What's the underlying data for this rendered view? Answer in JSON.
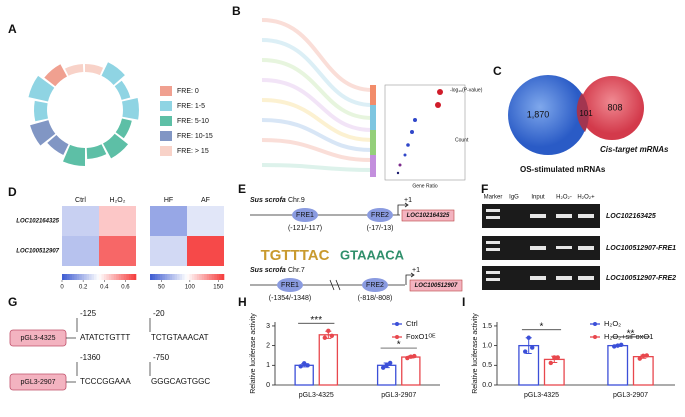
{
  "labels": [
    "A",
    "B",
    "C",
    "D",
    "E",
    "F",
    "G",
    "H",
    "I"
  ],
  "panel_a": {
    "legend": [
      "FRE: 0",
      "FRE: 1-5",
      "FRE: 5-10",
      "FRE: 10-15",
      "FRE: > 15"
    ],
    "colors": [
      "#f0a090",
      "#8fd4e3",
      "#5dbfa6",
      "#8196c4",
      "#f8d2c8"
    ]
  },
  "panel_b": {
    "x_label": "Gene Ratio",
    "color_label": "-log₁₀(P-value)",
    "size_label": "Count"
  },
  "panel_c": {
    "left": "1,870",
    "overlap": "101",
    "right": "808",
    "left_label": "OS-stimulated mRNAs",
    "right_label": "Cis-target mRNAs"
  },
  "panel_e": {
    "top": {
      "species": "Sus scrofa",
      "chr": "Chr.9",
      "fre1": "FRE1",
      "pos1": "(-121/-117)",
      "fre2": "FRE2",
      "pos2": "(-17/-13)",
      "tss": "+1",
      "gene": "LOC102164325"
    },
    "bottom": {
      "species": "Sus scrofa",
      "chr": "Chr.7",
      "fre1": "FRE1",
      "pos1": "(-1354/-1348)",
      "fre2": "FRE2",
      "pos2": "(-818/-808)",
      "tss": "+1",
      "gene": "LOC100512907"
    },
    "motif1": "TGTTTAC",
    "motif2": "GTAAACA"
  },
  "panel_f": {
    "lanes": [
      "Marker",
      "IgG",
      "Input",
      "H₂O₂-",
      "H₂O₂+"
    ],
    "rows": [
      "LOC102163425",
      "LOC100512907-FRE1",
      "LOC100512907-FRE2"
    ]
  },
  "panel_g": {
    "constructs": [
      {
        "name": "pGL3-4325",
        "start": "-125",
        "end": "-20",
        "seq1": "ATATCTGTTT",
        "seq2": "TCTGTAAACAT"
      },
      {
        "name": "pGL3-2907",
        "start": "-1360",
        "end": "-750",
        "seq1": "TCCCGGAAA",
        "seq2": "GGGCAGTGGC"
      }
    ]
  },
  "chart_data": [
    {
      "type": "heatmap",
      "x": [
        "Ctrl",
        "H₂O₂"
      ],
      "rows": [
        "LOC102164325",
        "LOC100512907"
      ],
      "values": [
        [
          0.25,
          0.45
        ],
        [
          0.22,
          0.62
        ]
      ],
      "clim": [
        0,
        0.7
      ],
      "cticks": [
        0,
        0.2,
        0.4,
        0.6
      ],
      "colors": [
        "#3d5bd1",
        "#ffffff",
        "#f53a3a"
      ]
    },
    {
      "type": "heatmap",
      "x": [
        "HF",
        "AF"
      ],
      "values": [
        [
          60,
          85
        ],
        [
          80,
          155
        ]
      ],
      "clim": [
        30,
        160
      ],
      "cticks": [
        50,
        100,
        150
      ],
      "colors": [
        "#3d5bd1",
        "#ffffff",
        "#f53a3a"
      ]
    },
    {
      "type": "bar",
      "categories": [
        "pGL3-4325",
        "pGL3-2907"
      ],
      "ylabel": "Relative luciferase activity",
      "ylim": [
        0,
        3.2
      ],
      "yticks": [
        0,
        1,
        2,
        3
      ],
      "series": [
        {
          "name": "Ctrl",
          "color": "#3b4fd8",
          "values": [
            1.0,
            1.0
          ],
          "errors": [
            0.08,
            0.12
          ],
          "points": [
            [
              0.95,
              1.1,
              1.0
            ],
            [
              0.88,
              1.0,
              1.12
            ]
          ]
        },
        {
          "name": "FoxO1ᴼᴱ",
          "color": "#e8474d",
          "values": [
            2.55,
            1.42
          ],
          "errors": [
            0.18,
            0.05
          ],
          "points": [
            [
              2.4,
              2.75,
              2.5
            ],
            [
              1.37,
              1.44,
              1.47
            ]
          ]
        }
      ],
      "significance": [
        "***",
        "*"
      ]
    },
    {
      "type": "bar",
      "categories": [
        "pGL3-4325",
        "pGL3-2907"
      ],
      "ylabel": "Relative luciferase activity",
      "ylim": [
        0,
        1.6
      ],
      "yticks": [
        {
          "value": 0,
          "label": "0.0"
        },
        {
          "value": 0.5,
          "label": "0.5"
        },
        {
          "value": 1,
          "label": "1.0"
        },
        {
          "value": 1.5,
          "label": "1.5"
        }
      ],
      "series": [
        {
          "name": "H₂O₂",
          "color": "#3b4fd8",
          "values": [
            1.0,
            1.0
          ],
          "errors": [
            0.2,
            0.02
          ],
          "points": [
            [
              0.85,
              1.2,
              0.95
            ],
            [
              0.98,
              1.0,
              1.02
            ]
          ]
        },
        {
          "name": "H₂O₂+siFoxO1",
          "color": "#e8474d",
          "values": [
            0.65,
            0.72
          ],
          "errors": [
            0.08,
            0.04
          ],
          "points": [
            [
              0.56,
              0.7,
              0.7
            ],
            [
              0.67,
              0.74,
              0.75
            ]
          ]
        }
      ],
      "significance": [
        "*",
        "**"
      ]
    }
  ]
}
